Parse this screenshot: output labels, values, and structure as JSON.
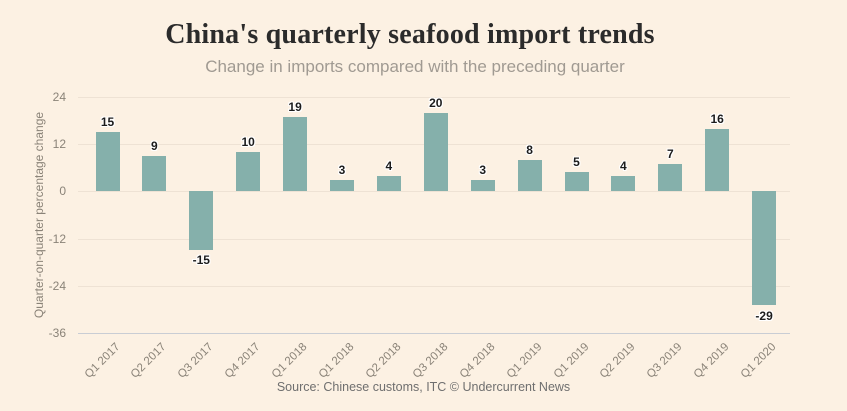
{
  "chart_data": {
    "type": "bar",
    "title": "China's quarterly seafood import trends",
    "subtitle": "Change in imports compared with the preceding quarter",
    "ylabel": "Quarter-on-quarter percentage change",
    "source": "Source: Chinese customs, ITC © Undercurrent News",
    "categories": [
      "Q1 2017",
      "Q2 2017",
      "Q3 2017",
      "Q4 2017",
      "Q1 2018",
      "Q1 2018",
      "Q2 2018",
      "Q3 2018",
      "Q4 2018",
      "Q1 2019",
      "Q1 2019",
      "Q2 2019",
      "Q3 2019",
      "Q4 2019",
      "Q1 2020"
    ],
    "values": [
      15,
      9,
      -15,
      10,
      19,
      3,
      4,
      20,
      3,
      8,
      5,
      4,
      7,
      16,
      -29
    ],
    "yticks": [
      24,
      12,
      0,
      -12,
      -24,
      -36
    ],
    "ylim": [
      -36,
      24
    ],
    "grid": true,
    "legend": "none",
    "bar_labels": [
      "15",
      "9",
      "-15",
      "10",
      "19",
      "3",
      "4",
      "20",
      "3",
      "8",
      "5",
      "4",
      "7",
      "16",
      "-29"
    ]
  },
  "colors": {
    "background": "#fcf1e3",
    "bar": "#85b0ab",
    "title": "#2b2b2b",
    "subtitle": "#a09a92",
    "axis_text": "#8a8378",
    "grid": "#eee2d4",
    "axis_line": "#c9cdd4",
    "value_label": "#1c1c1c",
    "source": "#6f6f6f"
  }
}
